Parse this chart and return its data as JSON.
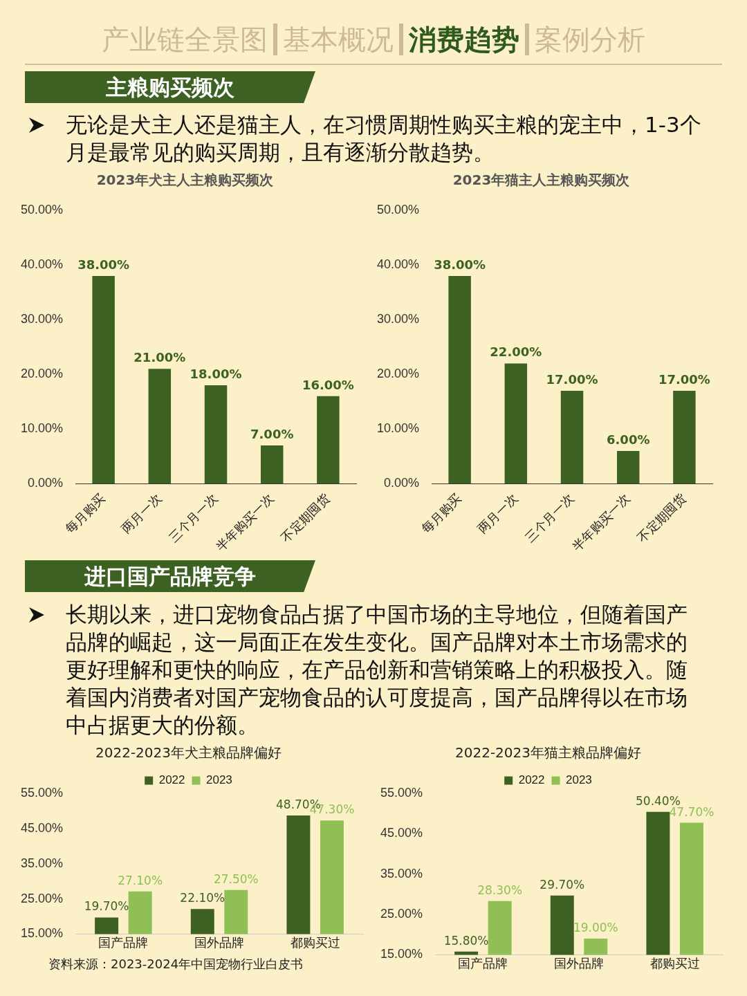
{
  "chart_data": [
    {
      "type": "other",
      "annotations": [
        "产业链全景图",
        "基本概况",
        "消费趋势",
        "案例分析"
      ],
      "title": "主粮购买频次",
      "subtitle": "无论是犬主人还是猫主人，在习惯周期性购买主粮的宠主中，1-3个月是最常见的购买周期，且有逐渐分散趋势。"
    },
    {
      "type": "bar",
      "title": "2023年犬主人主粮购买频次",
      "categories": [
        "每月购买",
        "两月一次",
        "三个月一次",
        "半年购买一次",
        "不定期囤货"
      ],
      "series": [
        {
          "color": "#3d6122",
          "values": [
            38,
            21,
            18,
            7,
            16
          ],
          "value_labels": [
            "38.00%",
            "21.00%",
            "18.00%",
            "7.00%",
            "16.00%"
          ]
        }
      ],
      "ylim": [
        0,
        50
      ],
      "yticks": [
        {
          "value": 0,
          "label": "0.00%"
        },
        {
          "value": 10,
          "label": "10.00%"
        },
        {
          "value": 20,
          "label": "20.00%"
        },
        {
          "value": 30,
          "label": "30.00%"
        },
        {
          "value": 40,
          "label": "40.00%"
        },
        {
          "value": 50,
          "label": "50.00%"
        }
      ]
    },
    {
      "type": "bar",
      "title": "2023年猫主人主粮购买频次",
      "categories": [
        "每月购买",
        "两月一次",
        "三个月一次",
        "半年购买一次",
        "不定期囤货"
      ],
      "series": [
        {
          "color": "#3d6122",
          "values": [
            38,
            22,
            17,
            6,
            17
          ],
          "value_labels": [
            "38.00%",
            "22.00%",
            "17.00%",
            "6.00%",
            "17.00%"
          ]
        }
      ],
      "ylim": [
        0,
        50
      ],
      "yticks": [
        {
          "value": 0,
          "label": "0.00%"
        },
        {
          "value": 10,
          "label": "10.00%"
        },
        {
          "value": 20,
          "label": "20.00%"
        },
        {
          "value": 30,
          "label": "30.00%"
        },
        {
          "value": 40,
          "label": "40.00%"
        },
        {
          "value": 50,
          "label": "50.00%"
        }
      ]
    },
    {
      "type": "other",
      "title": "进口国产品牌竞争",
      "subtitle": "长期以来，进口宠物食品占据了中国市场的主导地位，但随着国产品牌的崛起，这一局面正在发生变化。国产品牌对本土市场需求的更好理解和更快的响应，在产品创新和营销策略上的积极投入。随着国内消费者对国产宠物食品的认可度提高，国产品牌得以在市场中占据更大的份额。"
    },
    {
      "type": "bar",
      "title": "2022-2023年犬主粮品牌偏好",
      "categories": [
        "国产品牌",
        "国外品牌",
        "都购买过"
      ],
      "legend": "top",
      "series": [
        {
          "name": "2022",
          "color": "#3d6122",
          "values": [
            19.7,
            22.1,
            48.7
          ],
          "value_labels": [
            "19.70%",
            "22.10%",
            "48.70%"
          ]
        },
        {
          "name": "2023",
          "color": "#8fbf55",
          "values": [
            27.1,
            27.5,
            47.3
          ],
          "value_labels": [
            "27.10%",
            "27.50%",
            "47.30%"
          ]
        }
      ],
      "ylim": [
        15,
        55
      ],
      "yticks": [
        {
          "value": 15,
          "label": "15.00%"
        },
        {
          "value": 25,
          "label": "25.00%"
        },
        {
          "value": 35,
          "label": "35.00%"
        },
        {
          "value": 45,
          "label": "45.00%"
        },
        {
          "value": 55,
          "label": "55.00%"
        }
      ],
      "annotations": [
        "资料来源：2023-2024年中国宠物行业白皮书"
      ]
    },
    {
      "type": "bar",
      "title": "2022-2023年猫主粮品牌偏好",
      "categories": [
        "国产品牌",
        "国外品牌",
        "都购买过"
      ],
      "legend": "top",
      "series": [
        {
          "name": "2022",
          "color": "#3d6122",
          "values": [
            15.8,
            29.7,
            50.4
          ],
          "value_labels": [
            "15.80%",
            "29.70%",
            "50.40%"
          ]
        },
        {
          "name": "2023",
          "color": "#8fbf55",
          "values": [
            28.3,
            19,
            47.7
          ],
          "value_labels": [
            "28.30%",
            "19.00%",
            "47.70%"
          ]
        }
      ],
      "ylim": [
        15,
        55
      ],
      "yticks": [
        {
          "value": 15,
          "label": "15.00%"
        },
        {
          "value": 25,
          "label": "25.00%"
        },
        {
          "value": 35,
          "label": "35.00%"
        },
        {
          "value": 45,
          "label": "45.00%"
        },
        {
          "value": 55,
          "label": "55.00%"
        }
      ]
    }
  ]
}
